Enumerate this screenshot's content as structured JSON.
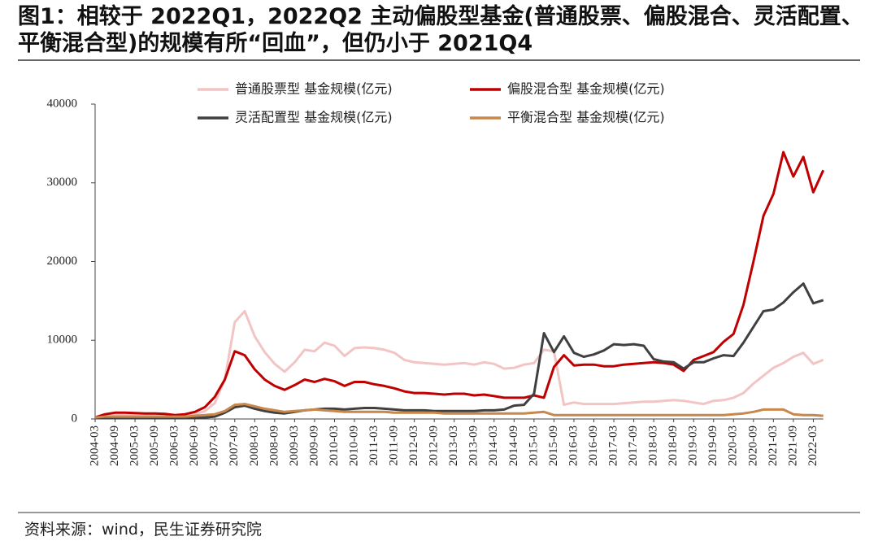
{
  "chart_data": {
    "type": "line",
    "title": "图1：相较于 2022Q1，2022Q2 主动偏股型基金(普通股票、偏股混合、灵活配置、平衡混合型)的规模有所“回血”，但仍小于 2021Q4",
    "source": "资料来源：wind，民生证券研究院",
    "legend": "top",
    "categories": [
      "2004-03",
      null,
      "2004-09",
      null,
      "2005-03",
      null,
      "2005-09",
      null,
      "2006-03",
      null,
      "2006-09",
      null,
      "2007-03",
      null,
      "2007-09",
      null,
      "2008-03",
      null,
      "2008-09",
      null,
      "2009-03",
      null,
      "2009-09",
      null,
      "2010-03",
      null,
      "2010-09",
      null,
      "2011-03",
      null,
      "2011-09",
      null,
      "2012-03",
      null,
      "2012-09",
      null,
      "2013-03",
      null,
      "2013-09",
      null,
      "2014-03",
      null,
      "2014-09",
      null,
      "2015-03",
      null,
      "2015-09",
      null,
      "2016-03",
      null,
      "2016-09",
      null,
      "2017-03",
      null,
      "2017-09",
      null,
      "2018-03",
      null,
      "2018-09",
      null,
      "2019-03",
      null,
      "2019-09",
      null,
      "2020-03",
      null,
      "2020-09",
      null,
      "2021-03",
      null,
      "2021-09",
      null,
      "2022-03",
      null
    ],
    "ylim": [
      0,
      40000
    ],
    "yticks": [
      0,
      10000,
      20000,
      30000,
      40000
    ],
    "series": [
      {
        "name": "普通股票型 基金规模(亿元)",
        "color": "#f2c4c4",
        "values": [
          200,
          400,
          500,
          500,
          500,
          500,
          400,
          400,
          300,
          400,
          600,
          1000,
          2000,
          5000,
          12300,
          13700,
          10500,
          8500,
          7000,
          6000,
          7200,
          8800,
          8600,
          9700,
          9300,
          8000,
          9000,
          9100,
          9000,
          8800,
          8400,
          7500,
          7200,
          7100,
          7000,
          6900,
          7000,
          7100,
          6900,
          7200,
          7000,
          6400,
          6500,
          6900,
          7100,
          8800,
          8600,
          1800,
          2100,
          1900,
          1900,
          1900,
          1900,
          2000,
          2100,
          2200,
          2200,
          2300,
          2400,
          2300,
          2100,
          1900,
          2300,
          2400,
          2700,
          3300,
          4500,
          5500,
          6500,
          7100,
          7900,
          8400,
          7000,
          7500
        ]
      },
      {
        "name": "偏股混合型 基金规模(亿元)",
        "color": "#c00000",
        "values": [
          200,
          600,
          800,
          800,
          750,
          700,
          700,
          650,
          500,
          600,
          900,
          1500,
          2800,
          5000,
          8600,
          8100,
          6300,
          5000,
          4200,
          3700,
          4300,
          5000,
          4700,
          5100,
          4800,
          4200,
          4700,
          4700,
          4400,
          4200,
          3900,
          3500,
          3300,
          3300,
          3200,
          3100,
          3200,
          3200,
          3000,
          3100,
          2900,
          2700,
          2700,
          2700,
          3000,
          2700,
          6600,
          8100,
          6800,
          6900,
          6900,
          6700,
          6700,
          6900,
          7000,
          7100,
          7200,
          7100,
          6900,
          6100,
          7500,
          8000,
          8500,
          9800,
          10800,
          14500,
          20000,
          25800,
          28600,
          33900,
          30800,
          33300,
          28800,
          31600
        ]
      },
      {
        "name": "灵活配置型 基金规模(亿元)",
        "color": "#404040",
        "values": [
          100,
          100,
          100,
          100,
          100,
          100,
          100,
          100,
          100,
          100,
          200,
          200,
          300,
          800,
          1500,
          1700,
          1300,
          1000,
          800,
          700,
          900,
          1100,
          1200,
          1300,
          1300,
          1200,
          1300,
          1400,
          1400,
          1300,
          1200,
          1100,
          1100,
          1100,
          1000,
          1000,
          1000,
          1000,
          1000,
          1100,
          1100,
          1200,
          1700,
          1800,
          3200,
          10900,
          8500,
          10500,
          8400,
          7900,
          8200,
          8700,
          9500,
          9400,
          9500,
          9300,
          7600,
          7300,
          7200,
          6400,
          7200,
          7200,
          7700,
          8100,
          8000,
          9700,
          11700,
          13700,
          13900,
          14800,
          16100,
          17200,
          14700,
          15100
        ]
      },
      {
        "name": "平衡混合型 基金规模(亿元)",
        "color": "#c8874b",
        "values": [
          200,
          300,
          300,
          300,
          300,
          300,
          300,
          300,
          300,
          300,
          400,
          500,
          600,
          1000,
          1800,
          1900,
          1600,
          1300,
          1100,
          900,
          1000,
          1100,
          1200,
          1100,
          1000,
          900,
          900,
          900,
          900,
          900,
          800,
          800,
          800,
          800,
          800,
          700,
          700,
          700,
          700,
          700,
          700,
          700,
          700,
          700,
          800,
          900,
          500,
          500,
          500,
          500,
          500,
          500,
          500,
          500,
          500,
          500,
          500,
          500,
          500,
          500,
          500,
          500,
          500,
          500,
          600,
          700,
          900,
          1200,
          1200,
          1200,
          600,
          500,
          500,
          400
        ]
      }
    ]
  }
}
